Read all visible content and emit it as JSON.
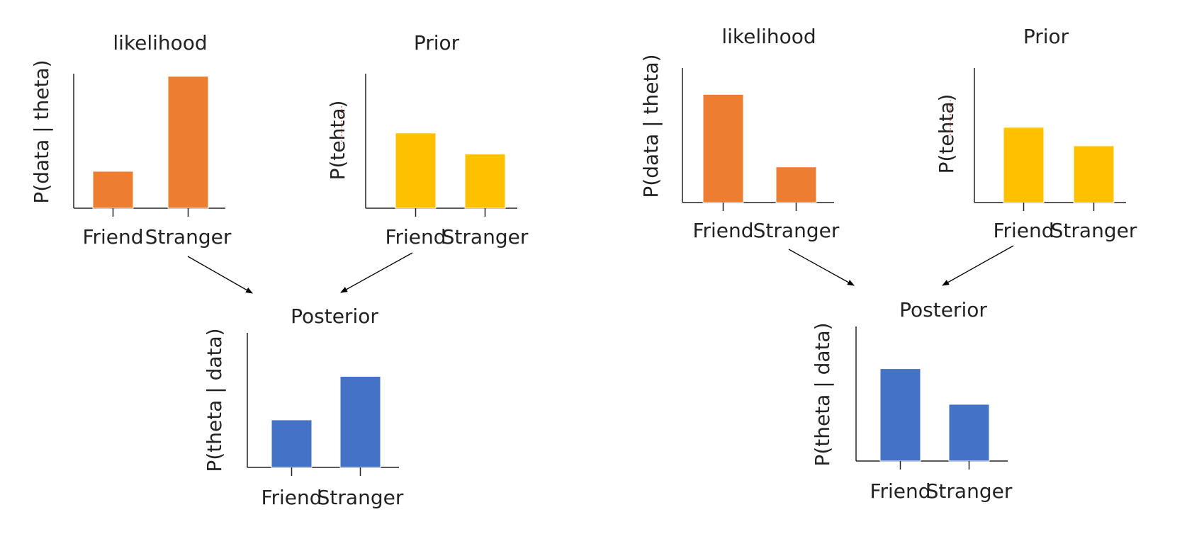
{
  "colors": {
    "likelihood": "#ED7D31",
    "prior": "#FFC000",
    "posterior": "#4472C4"
  },
  "chart_data": [
    {
      "type": "bar",
      "title": "likelihood",
      "ylabel": "P(data | theta)",
      "categories": [
        "Friend",
        "Stranger"
      ],
      "values": [
        0.28,
        1.0
      ],
      "ylim": [
        0,
        1.02
      ],
      "color": "#ED7D31"
    },
    {
      "type": "bar",
      "title": "Prior",
      "ylabel": "P(tehta)",
      "categories": [
        "Friend",
        "Stranger"
      ],
      "values": [
        0.57,
        0.41
      ],
      "ylim": [
        0,
        1.02
      ],
      "color": "#FFC000"
    },
    {
      "type": "bar",
      "title": "Posterior",
      "ylabel": "P(theta | data)",
      "categories": [
        "Friend",
        "Stranger"
      ],
      "values": [
        0.36,
        0.69
      ],
      "ylim": [
        0,
        1.02
      ],
      "color": "#4472C4"
    },
    {
      "type": "bar",
      "title": "likelihood",
      "ylabel": "P(data | theta)",
      "categories": [
        "Friend",
        "Stranger"
      ],
      "values": [
        0.82,
        0.27
      ],
      "ylim": [
        0,
        1.02
      ],
      "color": "#ED7D31"
    },
    {
      "type": "bar",
      "title": "Prior",
      "ylabel": "P(tehta)",
      "categories": [
        "Friend",
        "Stranger"
      ],
      "values": [
        0.57,
        0.43
      ],
      "ylim": [
        0,
        1.02
      ],
      "color": "#FFC000"
    },
    {
      "type": "bar",
      "title": "Posterior",
      "ylabel": "P(theta | data)",
      "categories": [
        "Friend",
        "Stranger"
      ],
      "values": [
        0.7,
        0.43
      ],
      "ylim": [
        0,
        1.02
      ],
      "color": "#4472C4"
    }
  ]
}
